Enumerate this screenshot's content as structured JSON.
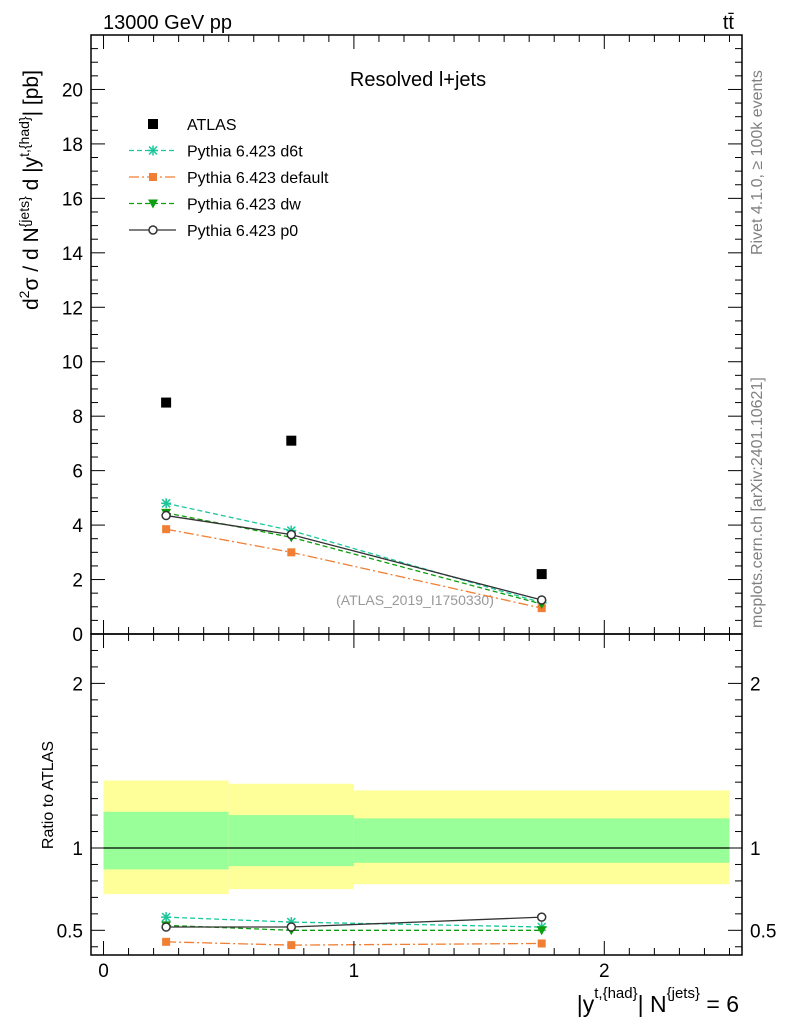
{
  "header": {
    "energy_label": "13000 GeV pp",
    "process_label": "tt̄"
  },
  "side_text": {
    "rivet": "Rivet 4.1.0, ≥ 100k events",
    "mcplots": "mcplots.cern.ch [arXiv:2401.10621]"
  },
  "chart_data": {
    "type": "line",
    "title": "Resolved l+jets",
    "watermark": "(ATLAS_2019_I1750330)",
    "ylabel": "d²σ / d N^{jets} d |y^{t,{had}}| [pb]",
    "xlabel": "|y^{t,{had}}| N^{jets} = 6",
    "xlim": [
      -0.05,
      2.55
    ],
    "ylim": [
      0,
      22
    ],
    "yticks": [
      0,
      2,
      4,
      6,
      8,
      10,
      12,
      14,
      16,
      18,
      20
    ],
    "bin_edges": [
      0,
      0.5,
      1.0,
      2.5
    ],
    "x": [
      0.25,
      0.75,
      1.75
    ],
    "atlas": {
      "name": "ATLAS",
      "values": [
        8.5,
        7.1,
        2.2
      ]
    },
    "series": [
      {
        "name": "Pythia 6.423 d6t",
        "color": "#1bc79a",
        "dash": "5,3",
        "marker": "star",
        "values": [
          4.8,
          3.8,
          1.15
        ],
        "errors": [
          0.15,
          0.15,
          0.05
        ]
      },
      {
        "name": "Pythia 6.423 default",
        "color": "#f07f33",
        "dash": "10,3,2,3",
        "marker": "square",
        "values": [
          3.85,
          3.0,
          0.95
        ],
        "errors": [
          0.12,
          0.1,
          0.04
        ]
      },
      {
        "name": "Pythia 6.423 dw",
        "color": "#0c9e0c",
        "dash": "5,3",
        "marker": "triangle",
        "values": [
          4.45,
          3.55,
          1.1
        ],
        "errors": [
          0.13,
          0.12,
          0.05
        ]
      },
      {
        "name": "Pythia 6.423 p0",
        "color": "#333333",
        "dash": "",
        "marker": "circle",
        "values": [
          4.35,
          3.65,
          1.25
        ],
        "errors": [
          0.12,
          0.12,
          0.05
        ]
      }
    ],
    "ratio": {
      "ylabel": "Ratio to ATLAS",
      "ylim": [
        0.35,
        2.3
      ],
      "yticks": [
        0.5,
        1,
        2
      ],
      "xticks": [
        0,
        1,
        2
      ],
      "band_inner": [
        [
          0.87,
          1.22
        ],
        [
          0.89,
          1.2
        ],
        [
          0.91,
          1.18
        ]
      ],
      "band_outer": [
        [
          0.72,
          1.41
        ],
        [
          0.75,
          1.39
        ],
        [
          0.78,
          1.35
        ]
      ],
      "series_values": [
        [
          0.58,
          0.55,
          0.52
        ],
        [
          0.43,
          0.41,
          0.42
        ],
        [
          0.53,
          0.5,
          0.5
        ],
        [
          0.52,
          0.52,
          0.58
        ]
      ],
      "series_errors": [
        [
          0.02,
          0.025,
          0.025
        ],
        [
          0.02,
          0.02,
          0.025
        ],
        [
          0.02,
          0.02,
          0.025
        ],
        [
          0.02,
          0.02,
          0.025
        ]
      ]
    }
  },
  "colors": {
    "band_inner": "#99ff99",
    "band_outer": "#ffff99",
    "atlas": "#000000"
  }
}
